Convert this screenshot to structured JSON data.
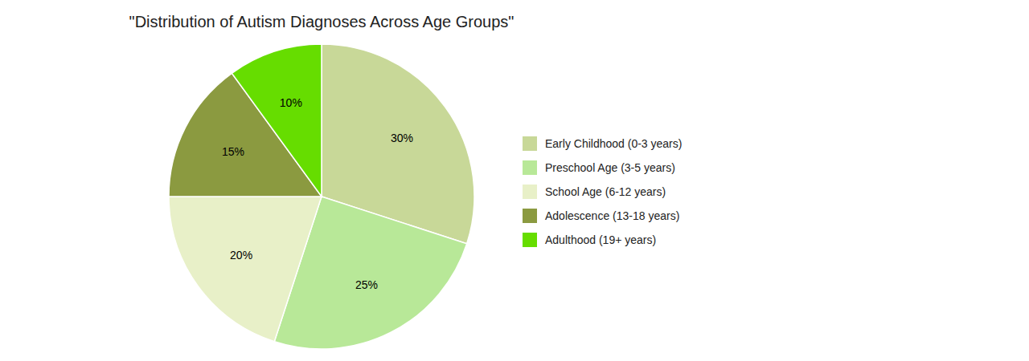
{
  "chart_data": {
    "type": "pie",
    "title": "\"Distribution of Autism Diagnoses Across Age Groups\"",
    "categories": [
      "Early Childhood (0-3 years)",
      "Preschool Age (3-5 years)",
      "School Age (6-12 years)",
      "Adolescence (13-18 years)",
      "Adulthood (19+ years)"
    ],
    "values": [
      30,
      25,
      20,
      15,
      10
    ],
    "value_labels": [
      "30%",
      "25%",
      "20%",
      "15%",
      "10%"
    ],
    "colors": [
      "#c8d898",
      "#b8e898",
      "#e8f0c8",
      "#8b9a40",
      "#66dd00"
    ],
    "data_labels": true,
    "legend": "right"
  }
}
